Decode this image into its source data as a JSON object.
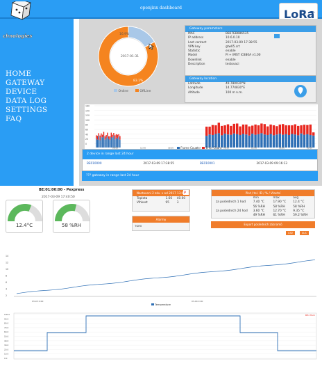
{
  "header": {
    "title": "openjinx dashboard"
  },
  "logo": {
    "text": "chnologies"
  },
  "brand": {
    "text": "LoRa"
  },
  "nav": [
    "HOME",
    "GATEWAY",
    "DEVICE",
    "DATA LOG",
    "SETTINGS",
    "FAQ"
  ],
  "gateway_pie": {
    "date": "2017-01-31",
    "slices": [
      {
        "name": "Online",
        "value": 16.9,
        "color": "#a9c8e8"
      },
      {
        "name": "OffLine",
        "value": 83.1,
        "color": "#f5841f"
      }
    ],
    "label_online": "16.9%",
    "label_offline": "83.1%",
    "legend_online": "Online",
    "legend_offline": "OffLine"
  },
  "gateway_params": {
    "title": "Gateway parameters",
    "rows": [
      [
        "MAC",
        "B827EB086535"
      ],
      [
        "IP address",
        "10.6.0.10"
      ],
      [
        "Last contact",
        "2017-03-09 17:38:55"
      ],
      [
        "VPN key",
        "gtw05.crt"
      ],
      [
        "Statistic",
        "enable"
      ],
      [
        "Model",
        "Pi + IMST iC880A v1.00"
      ],
      [
        "Downlink",
        "enable"
      ],
      [
        "Description",
        "testovaci"
      ]
    ]
  },
  "gateway_location": {
    "title": "Gateway location",
    "rows": [
      [
        "Latitude",
        "49.780030°N"
      ],
      [
        "Longitude",
        "14.774830°E"
      ],
      [
        "Altitude",
        "100 m n.m."
      ]
    ]
  },
  "frames_chart": {
    "legend_frame": "Frame Count",
    "legend_error": "Error Count",
    "yticks": [
      "160",
      "140",
      "120",
      "100",
      "80",
      "60",
      "40",
      "20",
      "0"
    ],
    "xticks": [
      "06:00",
      "12:00",
      "18:00",
      "00:00",
      "06:00",
      "12:00",
      "18:00",
      "00:00"
    ]
  },
  "devices": {
    "title": "2 device in range last 24 hour",
    "rows": [
      [
        "BE010000",
        "2017-03-09 17:38:55",
        "BE010001",
        "2017-03-09 09:16:13"
      ]
    ]
  },
  "gateways": {
    "title": "??? gateway in range last 24 hour"
  },
  "sensor": {
    "title": "BE:01:00:00 - Pexpress",
    "date": "2017-03-09 17:40:50",
    "temp": "12.4°C",
    "hum": "58 %RH",
    "temp_value": 12.4,
    "hum_value": 58
  },
  "table1": {
    "title": "Nastavení 2 záv. v od 2017 13:00",
    "rows": [
      [
        "Teplota",
        "1.66",
        "40.00"
      ],
      [
        "Vlhkost",
        "95",
        "3"
      ]
    ]
  },
  "table2": {
    "title": "Alarmy",
    "rows": [
      [
        "TGR0",
        ""
      ]
    ]
  },
  "table3": {
    "title": "Plot / tel. ID / % / Vlastní",
    "cols": [
      "min",
      "max",
      "avg"
    ],
    "rows": [
      [
        "za posledních 1 hod",
        "7.40 °C",
        "17.90 °C",
        "12.4 °C"
      ],
      [
        "",
        "56 %RH",
        "58 %RH",
        "58 %RH"
      ],
      [
        "za posledních 24 hod",
        "3.60 °C",
        "12.70 °C",
        "9.35 °C"
      ],
      [
        "",
        "49 %RH",
        "61 %RH",
        "59.2 %RH"
      ]
    ],
    "btn": "Export posledních záznamů",
    "btn2": "CSV",
    "btn3": "XLS"
  },
  "temp_chart": {
    "legend": "Temperature",
    "yticks": [
      "14",
      "12",
      "10",
      "8",
      "6",
      "4",
      "2"
    ],
    "xticks": [
      "03-03 0:00",
      "03-04 0:00"
    ]
  },
  "step_chart": {
    "label": "BHz Hum",
    "yticks": [
      "100.0",
      "90.0",
      "80.0",
      "70.0",
      "60.0",
      "50.0",
      "40.0",
      "30.0",
      "20.0",
      "10.0",
      "0.0"
    ]
  },
  "colors": {
    "blue": "#2a9df4",
    "orange": "#f5841f",
    "red": "#e8261e",
    "bar_blue": "#2e6fb5"
  }
}
